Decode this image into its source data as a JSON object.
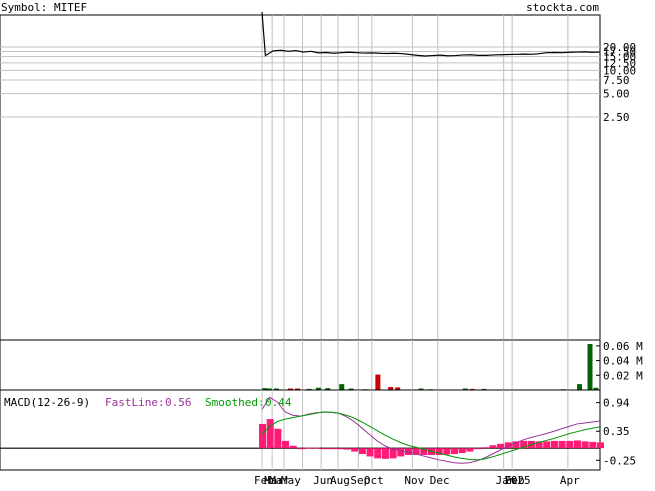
{
  "header": {
    "symbol_text": "Symbol: MITEF",
    "site": "stockta.com"
  },
  "colors": {
    "price_line": "#000000",
    "grid": "#c0c0c0",
    "volume_up": "#006400",
    "volume_down": "#cc0000",
    "macd_hist": "#ff1a75",
    "fast_line": "#993399",
    "smoothed_line": "#009900",
    "text": "#000000"
  },
  "macd_legend": {
    "title": "MACD(12-26-9)",
    "fast_label": "FastLine:",
    "fast_value": "0.56",
    "smoothed_label": "Smoothed:",
    "smoothed_value": "0.44"
  },
  "chart_data": [
    {
      "type": "line",
      "panel": "price",
      "yscale": "log",
      "ytick_labels": [
        "20.00",
        "17.50",
        "15.00",
        "12.50",
        "10.00",
        "7.50",
        "5.00",
        "2.50"
      ],
      "ytick_values": [
        20,
        17.5,
        15,
        12.5,
        10,
        7.5,
        5,
        2.5
      ],
      "x_labels": [
        "Feb",
        "Mar",
        "Mar",
        "May",
        "Jun",
        "Aug",
        "Sep",
        "Oct",
        "Nov",
        "Dec",
        "Jan",
        "2025",
        "Feb",
        "Apr"
      ],
      "x_label_pos": [
        0.0,
        0.03,
        0.045,
        0.08,
        0.175,
        0.225,
        0.285,
        0.325,
        0.445,
        0.52,
        0.715,
        0.74,
        0.742,
        0.905
      ],
      "grid_x": [
        0.0,
        0.03,
        0.065,
        0.12,
        0.175,
        0.225,
        0.285,
        0.325,
        0.445,
        0.52,
        0.715,
        0.74,
        0.905
      ],
      "pre_spike": [
        370,
        40
      ],
      "series": [
        {
          "values": [
            15.5,
            17.8,
            18.2,
            17.6,
            18.0,
            17.2,
            17.6,
            16.8,
            17.0,
            16.6,
            16.9,
            17.1,
            16.9,
            16.7,
            16.8,
            16.6,
            16.5,
            16.6,
            16.4,
            16.0,
            15.6,
            15.3,
            15.5,
            15.7,
            15.4,
            15.5,
            15.8,
            15.9,
            15.6,
            15.6,
            15.8,
            15.9,
            16.0,
            16.1,
            16.2,
            16.1,
            16.4,
            16.9,
            17.0,
            16.9,
            17.1,
            17.2,
            17.3,
            17.1,
            17.2
          ]
        }
      ]
    },
    {
      "type": "bar",
      "panel": "volume",
      "ytick_labels": [
        "0.06 M",
        "0.04 M",
        "0.02 M"
      ],
      "ytick_values": [
        0.06,
        0.04,
        0.02
      ],
      "ylim": [
        0,
        0.068
      ],
      "bars": [
        {
          "x": 0.01,
          "v": 0.0025,
          "up": true
        },
        {
          "x": 0.03,
          "v": 0.002,
          "up": true
        },
        {
          "x": 0.06,
          "v": 0.002,
          "up": true
        },
        {
          "x": 0.12,
          "v": 0.002,
          "up": false
        },
        {
          "x": 0.15,
          "v": 0.002,
          "up": false
        },
        {
          "x": 0.2,
          "v": 0.0015,
          "up": true
        },
        {
          "x": 0.24,
          "v": 0.003,
          "up": true
        },
        {
          "x": 0.28,
          "v": 0.0025,
          "up": true
        },
        {
          "x": 0.34,
          "v": 0.008,
          "up": true
        },
        {
          "x": 0.38,
          "v": 0.002,
          "up": true
        },
        {
          "x": 0.44,
          "v": 0.001,
          "up": true
        },
        {
          "x": 0.495,
          "v": 0.021,
          "up": false
        },
        {
          "x": 0.55,
          "v": 0.004,
          "up": false
        },
        {
          "x": 0.58,
          "v": 0.0035,
          "up": false
        },
        {
          "x": 0.68,
          "v": 0.002,
          "up": true
        },
        {
          "x": 0.72,
          "v": 0.001,
          "up": true
        },
        {
          "x": 0.87,
          "v": 0.002,
          "up": true
        },
        {
          "x": 0.9,
          "v": 0.0015,
          "up": false
        },
        {
          "x": 0.95,
          "v": 0.0015,
          "up": true
        },
        {
          "x": 1.29,
          "v": 0.001,
          "up": true
        },
        {
          "x": 1.36,
          "v": 0.008,
          "up": true
        },
        {
          "x": 1.405,
          "v": 0.0625,
          "up": true
        },
        {
          "x": 1.43,
          "v": 0.003,
          "up": true
        }
      ]
    },
    {
      "type": "line",
      "panel": "macd",
      "ytick_labels": [
        "0.94",
        "0.35",
        "-0.25"
      ],
      "ytick_values": [
        0.94,
        0.35,
        -0.25
      ],
      "ylim": [
        -0.45,
        1.2
      ],
      "series": [
        {
          "name": "FastLine",
          "values": [
            0.8,
            1.05,
            0.95,
            0.75,
            0.68,
            0.66,
            0.7,
            0.73,
            0.74,
            0.74,
            0.72,
            0.65,
            0.55,
            0.42,
            0.28,
            0.15,
            0.05,
            -0.02,
            -0.05,
            -0.08,
            -0.12,
            -0.16,
            -0.2,
            -0.24,
            -0.27,
            -0.3,
            -0.31,
            -0.3,
            -0.26,
            -0.2,
            -0.12,
            -0.04,
            0.04,
            0.11,
            0.17,
            0.22,
            0.26,
            0.3,
            0.35,
            0.4,
            0.45,
            0.5,
            0.52,
            0.54,
            0.56
          ]
        },
        {
          "name": "Smoothed",
          "values": [
            0.3,
            0.45,
            0.55,
            0.6,
            0.63,
            0.66,
            0.69,
            0.72,
            0.75,
            0.74,
            0.72,
            0.68,
            0.62,
            0.54,
            0.45,
            0.36,
            0.27,
            0.19,
            0.12,
            0.06,
            0.02,
            -0.02,
            -0.06,
            -0.1,
            -0.14,
            -0.18,
            -0.21,
            -0.23,
            -0.24,
            -0.22,
            -0.18,
            -0.13,
            -0.08,
            -0.03,
            0.02,
            0.07,
            0.12,
            0.16,
            0.2,
            0.25,
            0.3,
            0.34,
            0.38,
            0.41,
            0.44
          ]
        }
      ]
    }
  ]
}
